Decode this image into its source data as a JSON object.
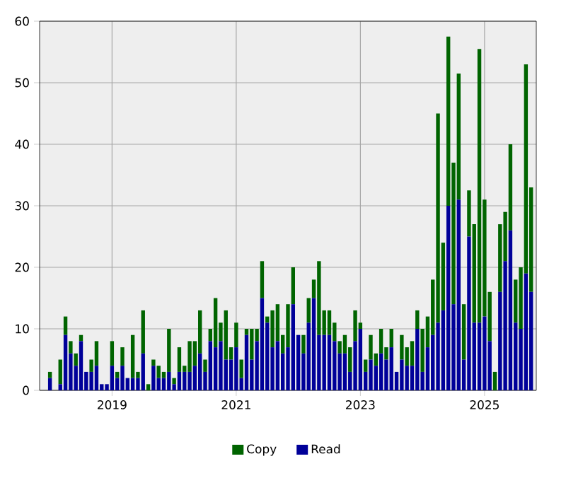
{
  "chart_data": {
    "type": "bar",
    "stacked": true,
    "x": [
      "2018-01",
      "2018-02",
      "2018-03",
      "2018-04",
      "2018-05",
      "2018-06",
      "2018-07",
      "2018-08",
      "2018-09",
      "2018-10",
      "2018-11",
      "2018-12",
      "2019-01",
      "2019-02",
      "2019-03",
      "2019-04",
      "2019-05",
      "2019-06",
      "2019-07",
      "2019-08",
      "2019-09",
      "2019-10",
      "2019-11",
      "2019-12",
      "2020-01",
      "2020-02",
      "2020-03",
      "2020-04",
      "2020-05",
      "2020-06",
      "2020-07",
      "2020-08",
      "2020-09",
      "2020-10",
      "2020-11",
      "2020-12",
      "2021-01",
      "2021-02",
      "2021-03",
      "2021-04",
      "2021-05",
      "2021-06",
      "2021-07",
      "2021-08",
      "2021-09",
      "2021-10",
      "2021-11",
      "2021-12",
      "2022-01",
      "2022-02",
      "2022-03",
      "2022-04",
      "2022-05",
      "2022-06",
      "2022-07",
      "2022-08",
      "2022-09",
      "2022-10",
      "2022-11",
      "2022-12",
      "2023-01",
      "2023-02",
      "2023-03",
      "2023-04",
      "2023-05",
      "2023-06",
      "2023-07",
      "2023-08",
      "2023-09",
      "2023-10",
      "2023-11",
      "2023-12",
      "2024-01",
      "2024-02",
      "2024-03",
      "2024-04",
      "2024-05",
      "2024-06",
      "2024-07",
      "2024-08",
      "2024-09",
      "2024-10",
      "2024-11",
      "2024-12",
      "2025-01",
      "2025-02",
      "2025-03",
      "2025-04",
      "2025-05",
      "2025-06",
      "2025-07",
      "2025-08",
      "2025-09",
      "2025-10"
    ],
    "series": [
      {
        "name": "Read",
        "color": "#000099",
        "values": [
          2,
          0,
          1,
          9,
          6,
          4,
          8,
          3,
          3,
          4,
          1,
          1,
          4,
          2,
          4,
          2,
          2,
          2,
          6,
          0,
          4,
          2,
          2,
          3,
          1,
          3,
          3,
          3,
          4,
          6,
          3,
          8,
          7,
          8,
          5,
          5,
          7,
          2,
          9,
          5,
          8,
          15,
          11,
          7,
          8,
          6,
          7,
          14,
          9,
          6,
          11,
          15,
          9,
          9,
          9,
          8,
          6,
          6,
          3,
          8,
          10,
          3,
          5,
          4,
          6,
          5,
          7,
          3,
          5,
          4,
          4,
          10,
          3,
          7,
          9,
          11,
          13,
          30,
          14,
          31,
          5,
          25,
          11,
          11,
          12,
          8,
          0,
          16,
          21,
          26,
          11,
          10,
          19,
          16
        ]
      },
      {
        "name": "Copy",
        "color": "#006400",
        "values": [
          1,
          0,
          4,
          3,
          2,
          2,
          1,
          0,
          2,
          4,
          0,
          0,
          4,
          1,
          3,
          0,
          7,
          1,
          7,
          1,
          1,
          2,
          1,
          7,
          1,
          4,
          1,
          5,
          4,
          7,
          2,
          2,
          8,
          3,
          8,
          2,
          4,
          3,
          1,
          5,
          2,
          6,
          1,
          6,
          6,
          3,
          7,
          6,
          0,
          3,
          4,
          3,
          12,
          4,
          4,
          3,
          2,
          3,
          4,
          5,
          1,
          2,
          4,
          2,
          4,
          2,
          3,
          0,
          4,
          3,
          4,
          3,
          7,
          5,
          9,
          34,
          11,
          27.5,
          23,
          20.5,
          9,
          7.5,
          16,
          44.5,
          19,
          8,
          3,
          11,
          8,
          14,
          7,
          10,
          34,
          17
        ]
      }
    ],
    "xlim": [
      "2017-11",
      "2025-11"
    ],
    "xticks": [
      "2019",
      "2021",
      "2023",
      "2025"
    ],
    "ylim": [
      0,
      60
    ],
    "yticks": [
      0,
      10,
      20,
      30,
      40,
      50,
      60
    ],
    "grid": true,
    "legend": "bottom"
  }
}
